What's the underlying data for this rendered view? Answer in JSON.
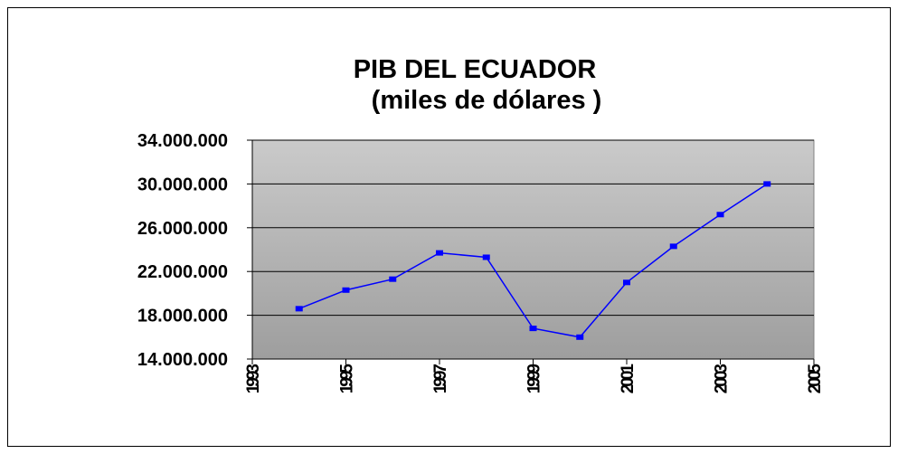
{
  "chart_data": {
    "type": "line",
    "title": [
      "PIB DEL ECUADOR",
      "(miles de dólares )"
    ],
    "x": [
      1994,
      1995,
      1996,
      1997,
      1998,
      1999,
      2000,
      2001,
      2002,
      2003,
      2004
    ],
    "series": [
      {
        "name": "PIB",
        "color": "#0000ff",
        "values": [
          18600000,
          20300000,
          21300000,
          23700000,
          23300000,
          16800000,
          16000000,
          21000000,
          24300000,
          27200000,
          30000000
        ]
      }
    ],
    "xlim": [
      1993,
      2005
    ],
    "xticks": [
      1993,
      1995,
      1997,
      1999,
      2001,
      2003,
      2005
    ],
    "ylim": [
      14000000,
      34000000
    ],
    "yticks": [
      {
        "value": 14000000,
        "label": "14.000.000"
      },
      {
        "value": 18000000,
        "label": "18.000.000"
      },
      {
        "value": 22000000,
        "label": "22.000.000"
      },
      {
        "value": 26000000,
        "label": "26.000.000"
      },
      {
        "value": 30000000,
        "label": "30.000.000"
      },
      {
        "value": 34000000,
        "label": "34.000.000"
      }
    ],
    "grid": true
  }
}
